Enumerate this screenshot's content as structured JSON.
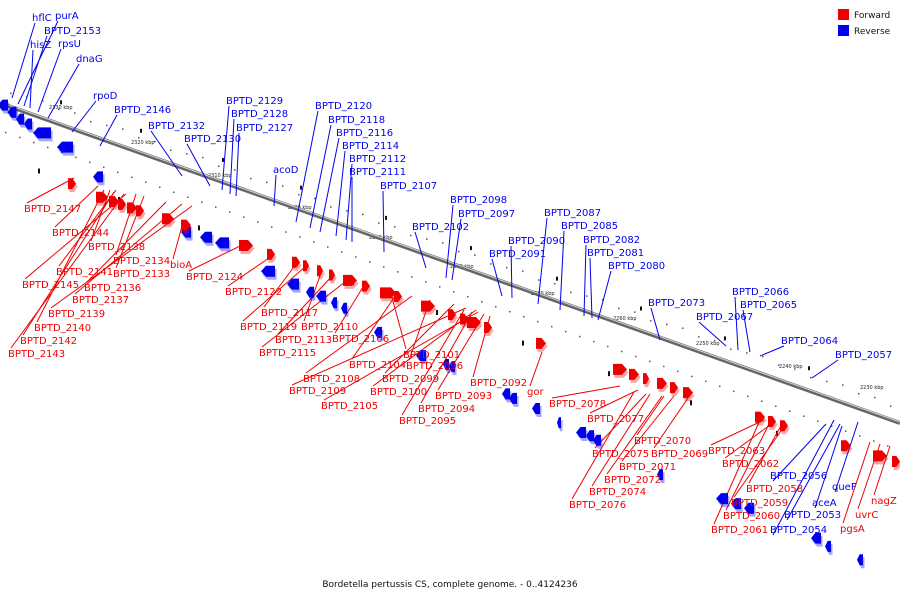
{
  "caption": "Bordetella pertussis CS, complete genome. - 0..4124236",
  "legend": [
    {
      "label": "Forward",
      "color": "#ee0000"
    },
    {
      "label": "Reverse",
      "color": "#0000ee"
    }
  ],
  "ticks": [
    "2230 kbp",
    "2240 kbp",
    "2250 kbp",
    "2260 kbp",
    "2270 kbp",
    "2280 kbp",
    "2290 kbp",
    "2300 kbp",
    "2310 kbp",
    "2320 kbp",
    "2330 kbp"
  ],
  "colors": {
    "forward": "#ee0000",
    "reverse": "#0000ee",
    "backbone": "#888888"
  },
  "reverse_labels": [
    "hflC",
    "purA",
    "BPTD_2153",
    "hisZ",
    "rpsU",
    "dnaG",
    "rpoD",
    "BPTD_2146",
    "BPTD_2132",
    "BPTD_2130",
    "BPTD_2129",
    "BPTD_2128",
    "BPTD_2127",
    "acoD",
    "BPTD_2120",
    "BPTD_2118",
    "BPTD_2116",
    "BPTD_2114",
    "BPTD_2112",
    "BPTD_2111",
    "BPTD_2107",
    "BPTD_2102",
    "BPTD_2098",
    "BPTD_2097",
    "BPTD_2091",
    "BPTD_2090",
    "BPTD_2087",
    "BPTD_2085",
    "BPTD_2082",
    "BPTD_2081",
    "BPTD_2080",
    "BPTD_2073",
    "BPTD_2067",
    "BPTD_2066",
    "BPTD_2065",
    "BPTD_2064",
    "BPTD_2057",
    "BPTD_2056",
    "BPTD_2054",
    "BPTD_2053",
    "aceA",
    "queF"
  ],
  "forward_labels": [
    "BPTD_2147",
    "BPTD_2144",
    "BPTD_2138",
    "BPTD_2141",
    "BPTD_2145",
    "BPTD_2134",
    "BPTD_2133",
    "BPTD_2136",
    "BPTD_2137",
    "BPTD_2139",
    "BPTD_2140",
    "BPTD_2142",
    "BPTD_2143",
    "bioA",
    "BPTD_2124",
    "BPTD_2122",
    "BPTD_2117",
    "BPTD_2119",
    "BPTD_2110",
    "BPTD_2113",
    "BPTD_2115",
    "BPTD_2106",
    "BPTD_2101",
    "BPTD_2104",
    "BPTD_2108",
    "BPTD_2096",
    "BPTD_2099",
    "BPTD_2109",
    "BPTD_2100",
    "BPTD_2092",
    "BPTD_2105",
    "BPTD_2093",
    "BPTD_2094",
    "BPTD_2095",
    "gor",
    "BPTD_2078",
    "BPTD_2077",
    "BPTD_2070",
    "BPTD_2075",
    "BPTD_2069",
    "BPTD_2071",
    "BPTD_2072",
    "BPTD_2074",
    "BPTD_2076",
    "BPTD_2063",
    "BPTD_2062",
    "BPTD_2058",
    "BPTD_2059",
    "BPTD_2060",
    "BPTD_2061",
    "nagZ",
    "uvrC",
    "pgsA"
  ]
}
